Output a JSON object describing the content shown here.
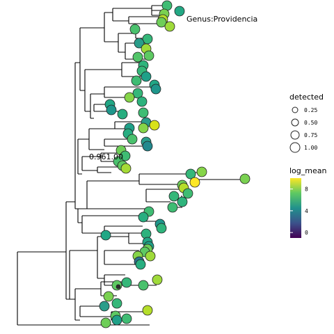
{
  "tree": {
    "annotations": {
      "genus_label": "Genus:Providencia",
      "support_label": "0.961.00"
    },
    "branch_color": "#000000",
    "point_stroke": "#222222"
  },
  "legend_size": {
    "title": "detected",
    "entries": [
      {
        "label": "0.25",
        "value": 0.25
      },
      {
        "label": "0.50",
        "value": 0.5
      },
      {
        "label": "0.75",
        "value": 0.75
      },
      {
        "label": "1.00",
        "value": 1.0
      }
    ]
  },
  "legend_color": {
    "title": "log_mean",
    "ticks": [
      {
        "label": "8",
        "value": 8
      },
      {
        "label": "4",
        "value": 4
      },
      {
        "label": "0",
        "value": 0
      }
    ],
    "range": [
      -1,
      10
    ],
    "stops": [
      "#440154",
      "#3b528b",
      "#21918c",
      "#5ec962",
      "#fde725"
    ]
  }
}
